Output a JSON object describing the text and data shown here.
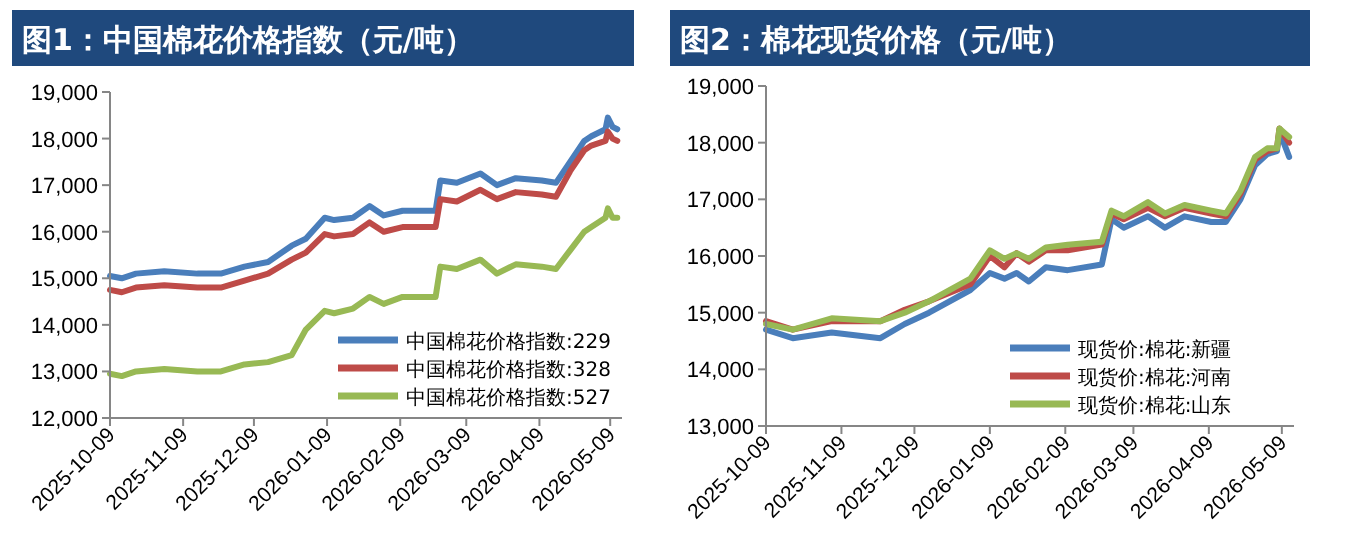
{
  "chart_data": [
    {
      "type": "line",
      "title": "图1：中国棉花价格指数（元/吨）",
      "legend": "bottom right",
      "grid": false,
      "x": [
        "2025-10-09",
        "2025-10-14",
        "2025-10-20",
        "2025-11-01",
        "2025-11-15",
        "2025-11-25",
        "2025-12-05",
        "2025-12-15",
        "2025-12-25",
        "2025-12-31",
        "2026-01-08",
        "2026-01-12",
        "2026-01-20",
        "2026-01-27",
        "2026-02-02",
        "2026-02-10",
        "2026-02-24",
        "2026-02-26",
        "2026-03-05",
        "2026-03-15",
        "2026-03-22",
        "2026-03-30",
        "2026-04-10",
        "2026-04-16",
        "2026-04-22",
        "2026-04-28",
        "2026-05-01",
        "2026-05-07",
        "2026-05-08",
        "2026-05-10",
        "2026-05-12"
      ],
      "xlim": [
        "2025-10-09",
        "2026-05-14"
      ],
      "xticks": [
        "2025-10-09",
        "2025-11-09",
        "2025-12-09",
        "2026-01-09",
        "2026-02-09",
        "2026-03-09",
        "2026-04-09",
        "2026-05-09"
      ],
      "ylim": [
        12000,
        19000
      ],
      "yticks": [
        {
          "value": 12000,
          "label": "12,000"
        },
        {
          "value": 13000,
          "label": "13,000"
        },
        {
          "value": 14000,
          "label": "14,000"
        },
        {
          "value": 15000,
          "label": "15,000"
        },
        {
          "value": 16000,
          "label": "16,000"
        },
        {
          "value": 17000,
          "label": "17,000"
        },
        {
          "value": 18000,
          "label": "18,000"
        },
        {
          "value": 19000,
          "label": "19,000"
        }
      ],
      "series": [
        {
          "name": "中国棉花价格指数:229",
          "color": "#4a7ebb",
          "values": [
            15050,
            15000,
            15100,
            15150,
            15100,
            15100,
            15250,
            15350,
            15700,
            15850,
            16300,
            16250,
            16300,
            16550,
            16350,
            16450,
            16450,
            17100,
            17050,
            17250,
            17000,
            17150,
            17100,
            17050,
            17500,
            17950,
            18050,
            18200,
            18450,
            18250,
            18200
          ]
        },
        {
          "name": "中国棉花价格指数:328",
          "color": "#be4b48",
          "values": [
            14750,
            14700,
            14800,
            14850,
            14800,
            14800,
            14950,
            15100,
            15400,
            15550,
            15950,
            15900,
            15950,
            16200,
            16000,
            16100,
            16100,
            16700,
            16650,
            16900,
            16700,
            16850,
            16800,
            16750,
            17300,
            17750,
            17850,
            17950,
            18150,
            18000,
            17950
          ]
        },
        {
          "name": "中国棉花价格指数:527",
          "color": "#98b954",
          "values": [
            12950,
            12900,
            13000,
            13050,
            13000,
            13000,
            13150,
            13200,
            13350,
            13900,
            14300,
            14250,
            14350,
            14600,
            14450,
            14600,
            14600,
            15250,
            15200,
            15400,
            15100,
            15300,
            15250,
            15200,
            15600,
            16000,
            16100,
            16300,
            16500,
            16300,
            16300
          ]
        }
      ]
    },
    {
      "type": "line",
      "title": "图2：棉花现货价格（元/吨）",
      "legend": "bottom right",
      "grid": false,
      "x": [
        "2025-10-09",
        "2025-10-20",
        "2025-11-05",
        "2025-11-25",
        "2025-12-05",
        "2025-12-15",
        "2026-01-01",
        "2026-01-09",
        "2026-01-15",
        "2026-01-20",
        "2026-01-25",
        "2026-02-01",
        "2026-02-10",
        "2026-02-24",
        "2026-02-28",
        "2026-03-05",
        "2026-03-15",
        "2026-03-22",
        "2026-03-30",
        "2026-04-10",
        "2026-04-16",
        "2026-04-22",
        "2026-04-28",
        "2026-05-03",
        "2026-05-07",
        "2026-05-08",
        "2026-05-12"
      ],
      "xlim": [
        "2025-10-09",
        "2026-05-14"
      ],
      "xticks": [
        "2025-10-09",
        "2025-11-09",
        "2025-12-09",
        "2026-01-09",
        "2026-02-09",
        "2026-03-09",
        "2026-04-09",
        "2026-05-09"
      ],
      "ylim": [
        13000,
        19000
      ],
      "yticks": [
        {
          "value": 13000,
          "label": "13,000"
        },
        {
          "value": 14000,
          "label": "14,000"
        },
        {
          "value": 15000,
          "label": "15,000"
        },
        {
          "value": 16000,
          "label": "16,000"
        },
        {
          "value": 17000,
          "label": "17,000"
        },
        {
          "value": 18000,
          "label": "18,000"
        },
        {
          "value": 19000,
          "label": "19,000"
        }
      ],
      "series": [
        {
          "name": "现货价:棉花:新疆",
          "color": "#4a7ebb",
          "values": [
            14700,
            14550,
            14650,
            14550,
            14800,
            15000,
            15400,
            15700,
            15600,
            15700,
            15550,
            15800,
            15750,
            15850,
            16650,
            16500,
            16700,
            16500,
            16700,
            16600,
            16600,
            17000,
            17600,
            17800,
            17850,
            18200,
            17750
          ]
        },
        {
          "name": "现货价:棉花:河南",
          "color": "#be4b48",
          "values": [
            14850,
            14700,
            14850,
            14850,
            15050,
            15200,
            15500,
            16000,
            15800,
            16050,
            15900,
            16100,
            16100,
            16200,
            16750,
            16650,
            16850,
            16700,
            16850,
            16750,
            16700,
            17100,
            17700,
            17850,
            17900,
            18250,
            18000
          ]
        },
        {
          "name": "现货价:棉花:山东",
          "color": "#98b954",
          "values": [
            14800,
            14700,
            14900,
            14850,
            15000,
            15200,
            15600,
            16100,
            15950,
            16050,
            15950,
            16150,
            16200,
            16250,
            16800,
            16700,
            16950,
            16750,
            16900,
            16800,
            16750,
            17150,
            17750,
            17900,
            17900,
            18250,
            18100
          ]
        }
      ]
    }
  ]
}
